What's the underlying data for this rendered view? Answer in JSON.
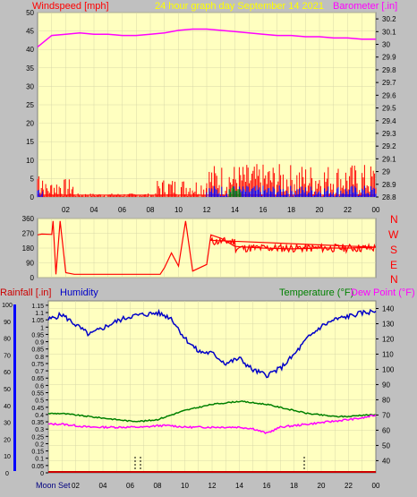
{
  "header": {
    "left_label": "Windspeed [mph]",
    "center_label": "24 hour graph day   September 14 2021",
    "right_label": "Barometer [.in]"
  },
  "compass": [
    "N",
    "W",
    "S",
    "E",
    "N"
  ],
  "lower_header": {
    "rain_label": "Rainfall [.in]",
    "humidity_label": "Humidity",
    "temp_label": "Temperature (°F)",
    "dew_label": "Dew Point (°F)"
  },
  "moon_label": "Moon Set",
  "colors": {
    "background": "#c0c0c0",
    "plot_bg": "#ffffc0",
    "grid": "#d8d8a8",
    "wind": "#ff0000",
    "gust_blue": "#0000ff",
    "gust_green": "#008000",
    "barometer": "#ff00ff",
    "humidity": "#0000c8",
    "temperature": "#008000",
    "dew_point": "#ff00ff",
    "rain": "#cc0000"
  },
  "chart_data": [
    {
      "type": "line",
      "name_ref": "wind-barometer",
      "x_ticks": [
        "02",
        "04",
        "06",
        "08",
        "10",
        "12",
        "14",
        "16",
        "18",
        "20",
        "22",
        "00"
      ],
      "y_left": [
        0,
        5,
        10,
        15,
        20,
        25,
        30,
        35,
        40,
        45,
        50
      ],
      "y_left_range": [
        0,
        50
      ],
      "y_right": [
        "28.8",
        "28.9",
        "29",
        "29.1",
        "29.2",
        "29.3",
        "29.4",
        "29.5",
        "29.6",
        "29.7",
        "29.8",
        "29.9",
        "30",
        "30.1",
        "30.2"
      ],
      "y_right_range": [
        28.8,
        30.25
      ],
      "barometer": {
        "x": [
          0,
          1,
          2,
          3,
          4,
          5,
          6,
          7,
          8,
          9,
          10,
          11,
          12,
          13,
          14,
          15,
          16,
          17,
          18,
          19,
          20,
          21,
          22,
          23,
          24
        ],
        "values": [
          29.98,
          30.07,
          30.08,
          30.09,
          30.08,
          30.08,
          30.07,
          30.07,
          30.08,
          30.09,
          30.11,
          30.12,
          30.12,
          30.11,
          30.1,
          30.09,
          30.08,
          30.07,
          30.07,
          30.06,
          30.06,
          30.05,
          30.05,
          30.04,
          30.04
        ]
      },
      "wind_segments": [
        {
          "x0": 0.0,
          "x1": 0.4,
          "max": 10
        },
        {
          "x0": 0.4,
          "x1": 1.0,
          "max": 4
        },
        {
          "x0": 1.0,
          "x1": 2.6,
          "max": 5
        },
        {
          "x0": 2.6,
          "x1": 8.5,
          "max": 1
        },
        {
          "x0": 8.5,
          "x1": 12.0,
          "max": 5
        },
        {
          "x0": 12.0,
          "x1": 24.0,
          "max": 9
        }
      ],
      "calm_line": {
        "value": 0.5
      }
    },
    {
      "type": "line",
      "name_ref": "wind-direction",
      "y_ticks": [
        0,
        90,
        180,
        270,
        360
      ],
      "y_range": [
        0,
        360
      ],
      "direction": {
        "x": [
          0,
          0.3,
          1.0,
          1.1,
          1.3,
          1.6,
          2.0,
          2.6,
          3.0,
          8.0,
          8.7,
          9.0,
          9.5,
          10.0,
          10.5,
          11.0,
          12.0,
          12.3,
          13.0,
          14.0,
          16.0,
          18.0,
          20.0,
          22.0,
          24.0
        ],
        "values": [
          260,
          265,
          263,
          345,
          20,
          345,
          30,
          20,
          20,
          20,
          20,
          60,
          150,
          70,
          345,
          40,
          80,
          260,
          240,
          190,
          180,
          175,
          180,
          180,
          185
        ]
      }
    },
    {
      "type": "line",
      "name_ref": "humidity-temp-rain",
      "y_left_rain": [
        "0",
        "0.05",
        "0.1",
        "0.15",
        "0.2",
        "0.25",
        "0.3",
        "0.35",
        "0.4",
        "0.45",
        "0.5",
        "0.55",
        "0.6",
        "0.65",
        "0.7",
        "0.75",
        "0.8",
        "0.85",
        "0.9",
        "0.95",
        "1",
        "1.05",
        "1.1",
        "1.15"
      ],
      "y_left_humidity": [
        0,
        10,
        20,
        30,
        40,
        50,
        60,
        70,
        80,
        90,
        100
      ],
      "y_right_temp": [
        40,
        50,
        60,
        70,
        80,
        90,
        100,
        110,
        120,
        130,
        140
      ],
      "rain_range": [
        0,
        1.18
      ],
      "temp_range": [
        32,
        145
      ],
      "humidity": {
        "x": [
          0,
          1,
          2,
          3,
          4,
          5,
          6,
          7,
          8,
          9,
          10,
          11,
          12,
          13,
          14,
          15,
          16,
          17,
          18,
          19,
          20,
          21,
          22,
          23,
          24
        ],
        "values": [
          91,
          94,
          88,
          82,
          86,
          90,
          93,
          94,
          95,
          92,
          80,
          72,
          71,
          65,
          68,
          61,
          58,
          62,
          70,
          80,
          87,
          91,
          93,
          95,
          96
        ]
      },
      "temperature": {
        "x": [
          0,
          1,
          2,
          3,
          4,
          5,
          6,
          7,
          8,
          9,
          10,
          11,
          12,
          13,
          14,
          15,
          16,
          17,
          18,
          19,
          20,
          21,
          22,
          23,
          24
        ],
        "values": [
          71,
          71,
          70,
          69,
          68,
          67,
          66,
          66,
          67,
          70,
          73,
          75,
          77,
          78,
          79,
          78,
          77,
          75,
          73,
          71,
          70,
          69,
          69,
          70,
          70
        ]
      },
      "dew_point": {
        "x": [
          0,
          1,
          2,
          3,
          4,
          5,
          6,
          7,
          8,
          9,
          10,
          11,
          12,
          13,
          14,
          15,
          16,
          17,
          18,
          19,
          20,
          21,
          22,
          23,
          24
        ],
        "values": [
          64,
          64,
          63,
          62,
          62,
          62,
          62,
          62,
          63,
          63,
          62,
          62,
          62,
          62,
          62,
          61,
          58,
          62,
          63,
          64,
          65,
          66,
          67,
          68,
          70
        ]
      },
      "rainfall": {
        "x": [
          0,
          24
        ],
        "values": [
          0,
          0
        ]
      }
    }
  ]
}
